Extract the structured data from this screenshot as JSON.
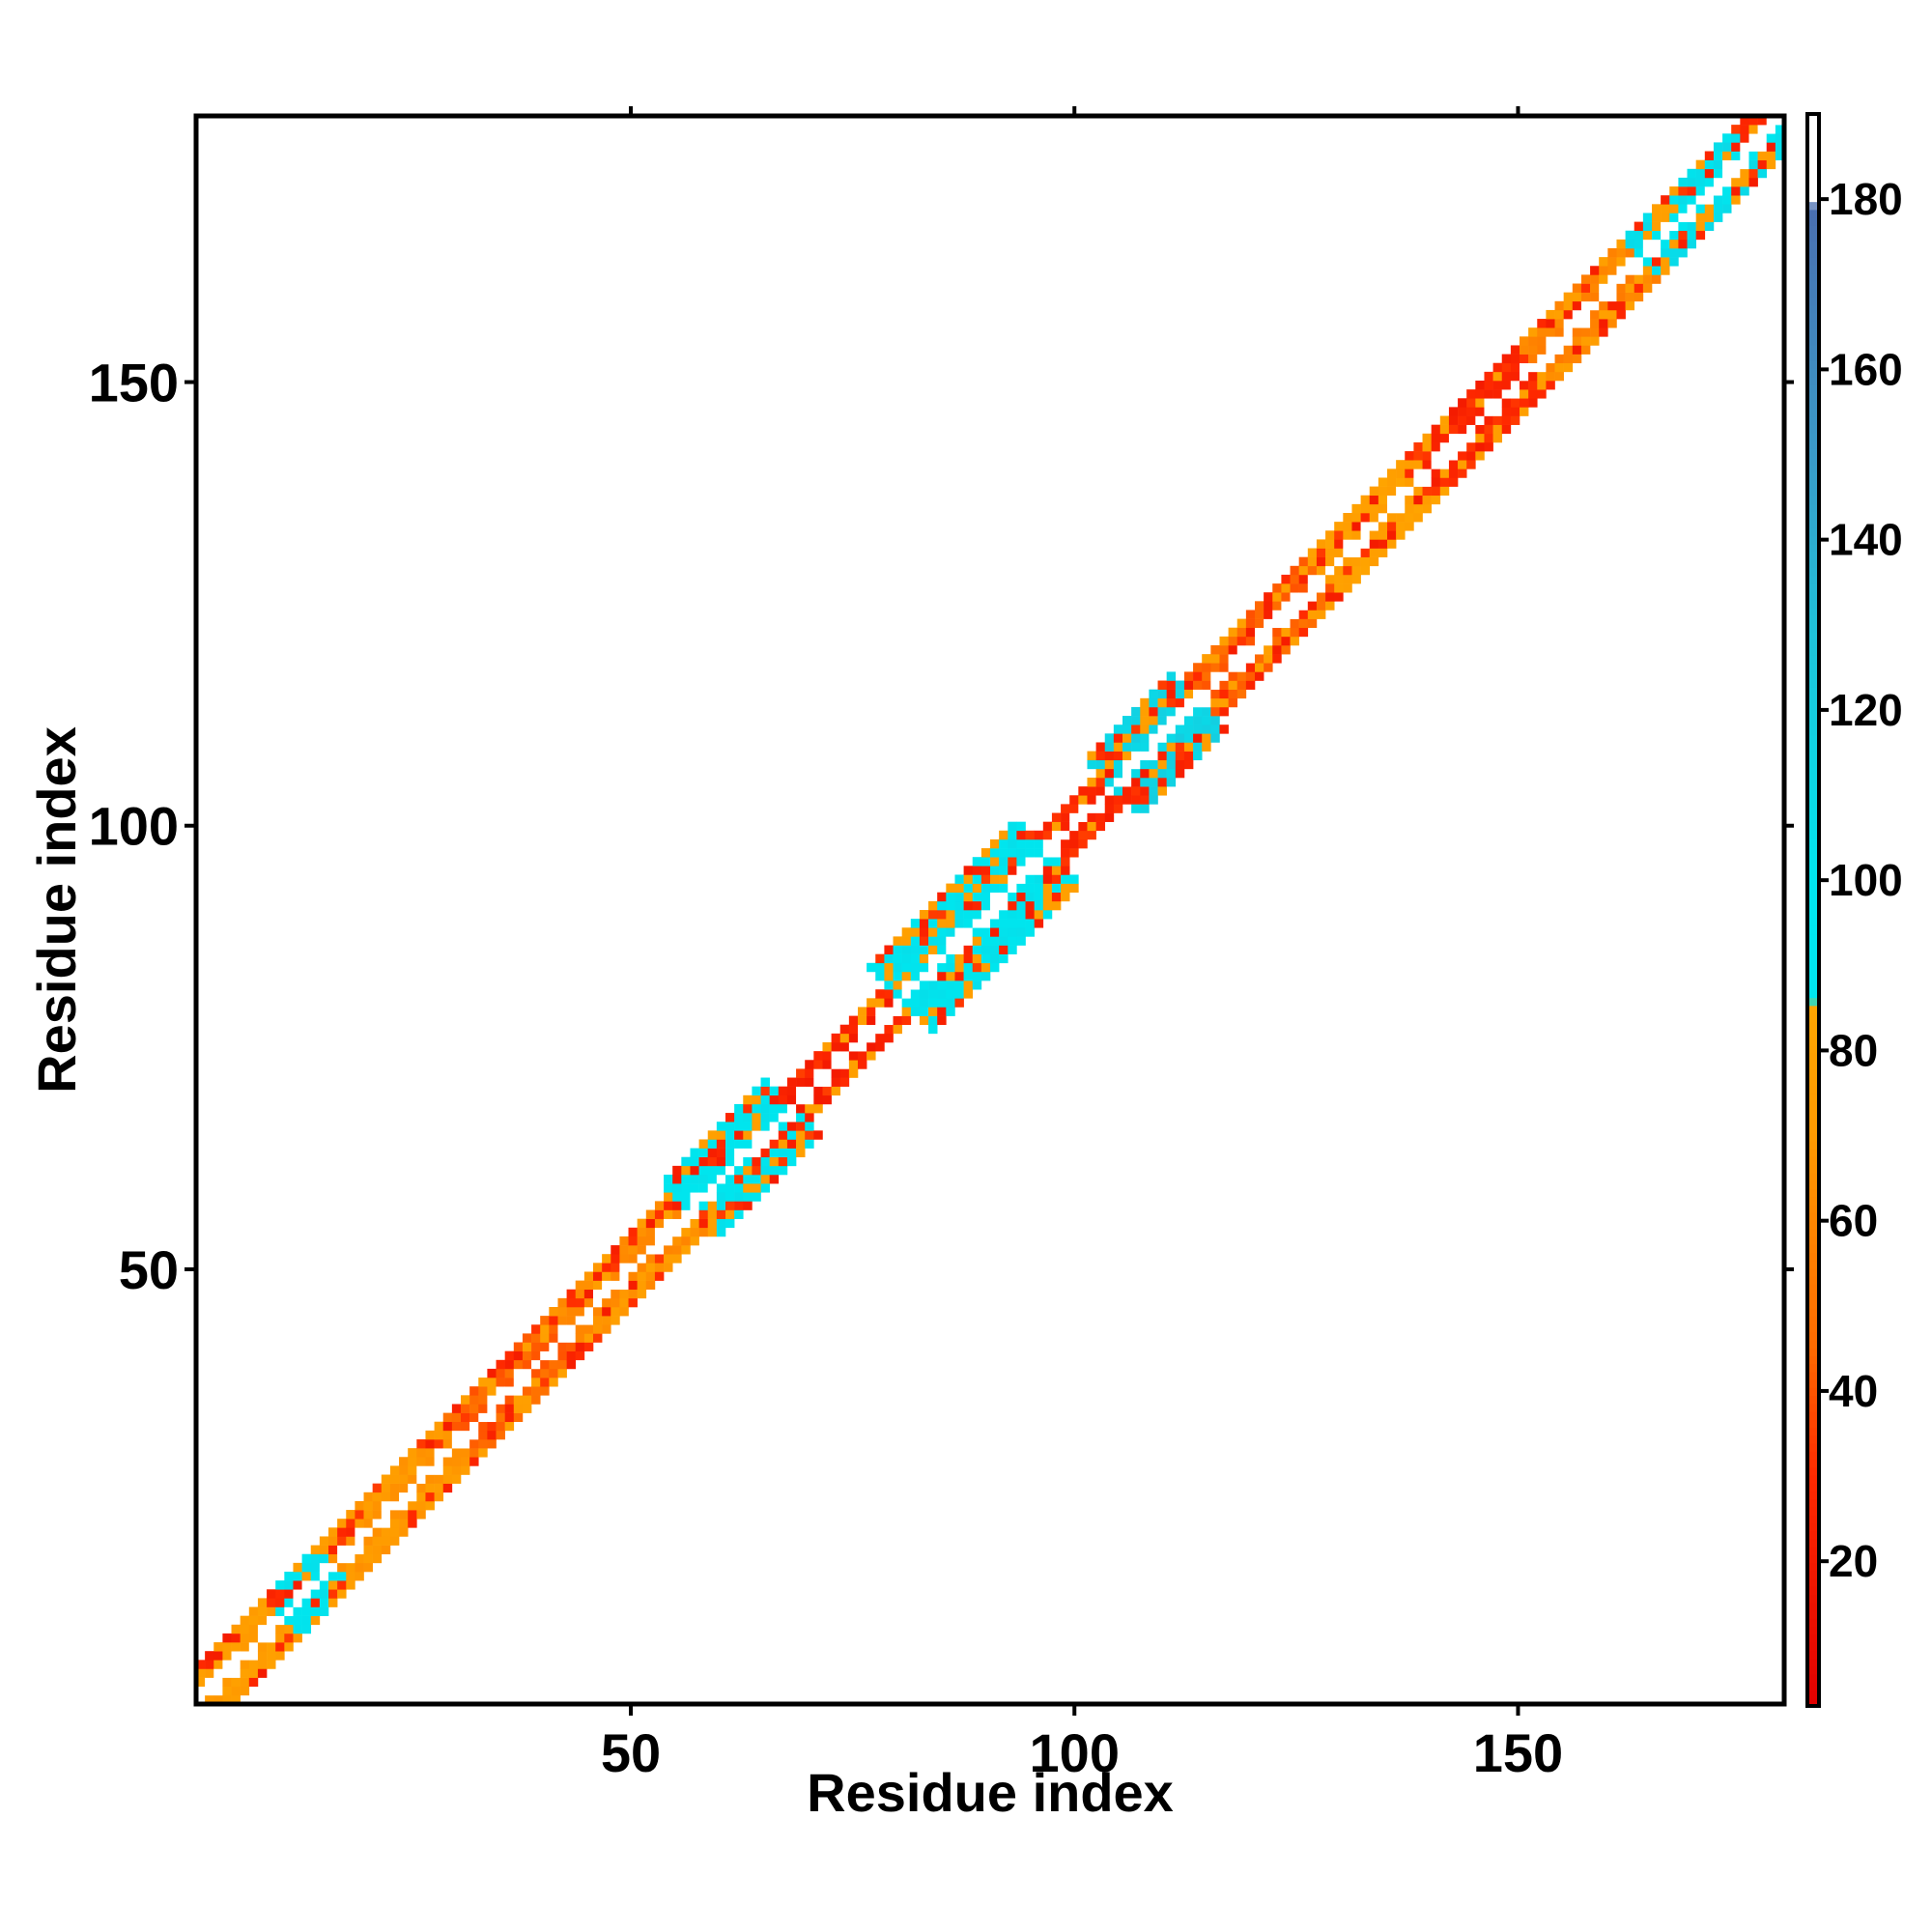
{
  "chart_data": {
    "type": "heatmap",
    "title": "",
    "xlabel": "Residue index",
    "ylabel": "Residue index",
    "xlim": [
      1,
      180
    ],
    "ylim": [
      1,
      180
    ],
    "x_ticks": [
      50,
      100,
      150
    ],
    "y_ticks": [
      50,
      100,
      150
    ],
    "x_tick_labels": [
      "50",
      "100",
      "150"
    ],
    "y_tick_labels": [
      "50",
      "100",
      "150"
    ],
    "colorbar": {
      "range": [
        3,
        190
      ],
      "ticks": [
        20,
        40,
        60,
        80,
        100,
        120,
        140,
        160,
        180
      ],
      "tick_labels": [
        "20",
        "40",
        "60",
        "80",
        "100",
        "120",
        "140",
        "160",
        "180"
      ],
      "stops": [
        {
          "value": 3,
          "color": "#e00000"
        },
        {
          "value": 30,
          "color": "#ff2a00"
        },
        {
          "value": 45,
          "color": "#ff6a00"
        },
        {
          "value": 70,
          "color": "#ff9900"
        },
        {
          "value": 85,
          "color": "#ffa500"
        },
        {
          "value": 86,
          "color": "#00e5ee"
        },
        {
          "value": 100,
          "color": "#00e5ee"
        },
        {
          "value": 130,
          "color": "#20c0d8"
        },
        {
          "value": 150,
          "color": "#3a9ac8"
        },
        {
          "value": 179,
          "color": "#4a6fb0"
        },
        {
          "value": 180,
          "color": "#ffffff"
        },
        {
          "value": 190,
          "color": "#ffffff"
        }
      ]
    },
    "diagonal_band": {
      "note_values": "Each segment: residue range [start, end], max offset from diagonal, dominant value of off-diagonal cells",
      "segments": [
        {
          "start": 1,
          "end": 10,
          "width": 4,
          "value": 70
        },
        {
          "start": 10,
          "end": 16,
          "width": 4,
          "value": 95
        },
        {
          "start": 16,
          "end": 30,
          "width": 4,
          "value": 65
        },
        {
          "start": 30,
          "end": 42,
          "width": 4,
          "value": 40
        },
        {
          "start": 42,
          "end": 56,
          "width": 4,
          "value": 60
        },
        {
          "start": 56,
          "end": 68,
          "width": 6,
          "value": 95
        },
        {
          "start": 68,
          "end": 80,
          "width": 3,
          "value": 20
        },
        {
          "start": 80,
          "end": 97,
          "width": 7,
          "value": 95
        },
        {
          "start": 97,
          "end": 104,
          "width": 3,
          "value": 25
        },
        {
          "start": 104,
          "end": 114,
          "width": 6,
          "value": 110
        },
        {
          "start": 114,
          "end": 128,
          "width": 4,
          "value": 40
        },
        {
          "start": 128,
          "end": 140,
          "width": 4,
          "value": 75
        },
        {
          "start": 140,
          "end": 152,
          "width": 4,
          "value": 25
        },
        {
          "start": 152,
          "end": 164,
          "width": 4,
          "value": 55
        },
        {
          "start": 164,
          "end": 180,
          "width": 4,
          "value": 100
        }
      ]
    }
  }
}
